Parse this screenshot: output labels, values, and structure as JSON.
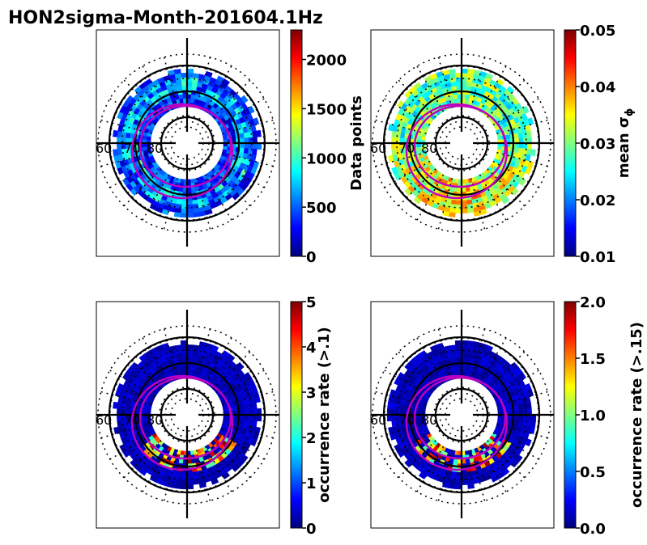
{
  "title": "HON2sigma-Month-201604.1Hz",
  "colormap": [
    "#00007f",
    "#0000ff",
    "#007fff",
    "#00ffff",
    "#7fff7f",
    "#ffff00",
    "#ff7f00",
    "#ff0000",
    "#7f0000"
  ],
  "colors": {
    "grid": "#000000",
    "oval": "#bf00bf",
    "background": "#ffffff"
  },
  "chart_data": [
    {
      "type": "heatmap",
      "projection": "polar",
      "title": "",
      "ring_labels": [
        "60",
        "70",
        "80"
      ],
      "colorbar": {
        "label": "Data points",
        "range": [
          0,
          2300
        ],
        "ticks": [
          "0",
          "500",
          "1000",
          "1500",
          "2000"
        ],
        "tick_values": [
          0,
          500,
          1000,
          1500,
          2000
        ]
      }
    },
    {
      "type": "heatmap",
      "projection": "polar",
      "title": "",
      "ring_labels": [
        "60",
        "70",
        "80"
      ],
      "colorbar": {
        "label": "mean σ",
        "label_sub": "ϕ",
        "range": [
          0.01,
          0.05
        ],
        "ticks": [
          "0.01",
          "0.02",
          "0.03",
          "0.04",
          "0.05"
        ],
        "tick_values": [
          0.01,
          0.02,
          0.03,
          0.04,
          0.05
        ]
      }
    },
    {
      "type": "heatmap",
      "projection": "polar",
      "title": "",
      "ring_labels": [
        "60",
        "70",
        "80"
      ],
      "colorbar": {
        "label": "occurrence rate (>.1)",
        "range": [
          0,
          5
        ],
        "ticks": [
          "0",
          "1",
          "2",
          "3",
          "4",
          "5"
        ],
        "tick_values": [
          0,
          1,
          2,
          3,
          4,
          5
        ]
      }
    },
    {
      "type": "heatmap",
      "projection": "polar",
      "title": "",
      "ring_labels": [
        "60",
        "70",
        "80"
      ],
      "colorbar": {
        "label": "occurrence rate (>.15)",
        "range": [
          0,
          2
        ],
        "ticks": [
          "0.0",
          "0.5",
          "1.0",
          "1.5",
          "2.0"
        ],
        "tick_values": [
          0,
          0.5,
          1.0,
          1.5,
          2.0
        ]
      }
    }
  ]
}
